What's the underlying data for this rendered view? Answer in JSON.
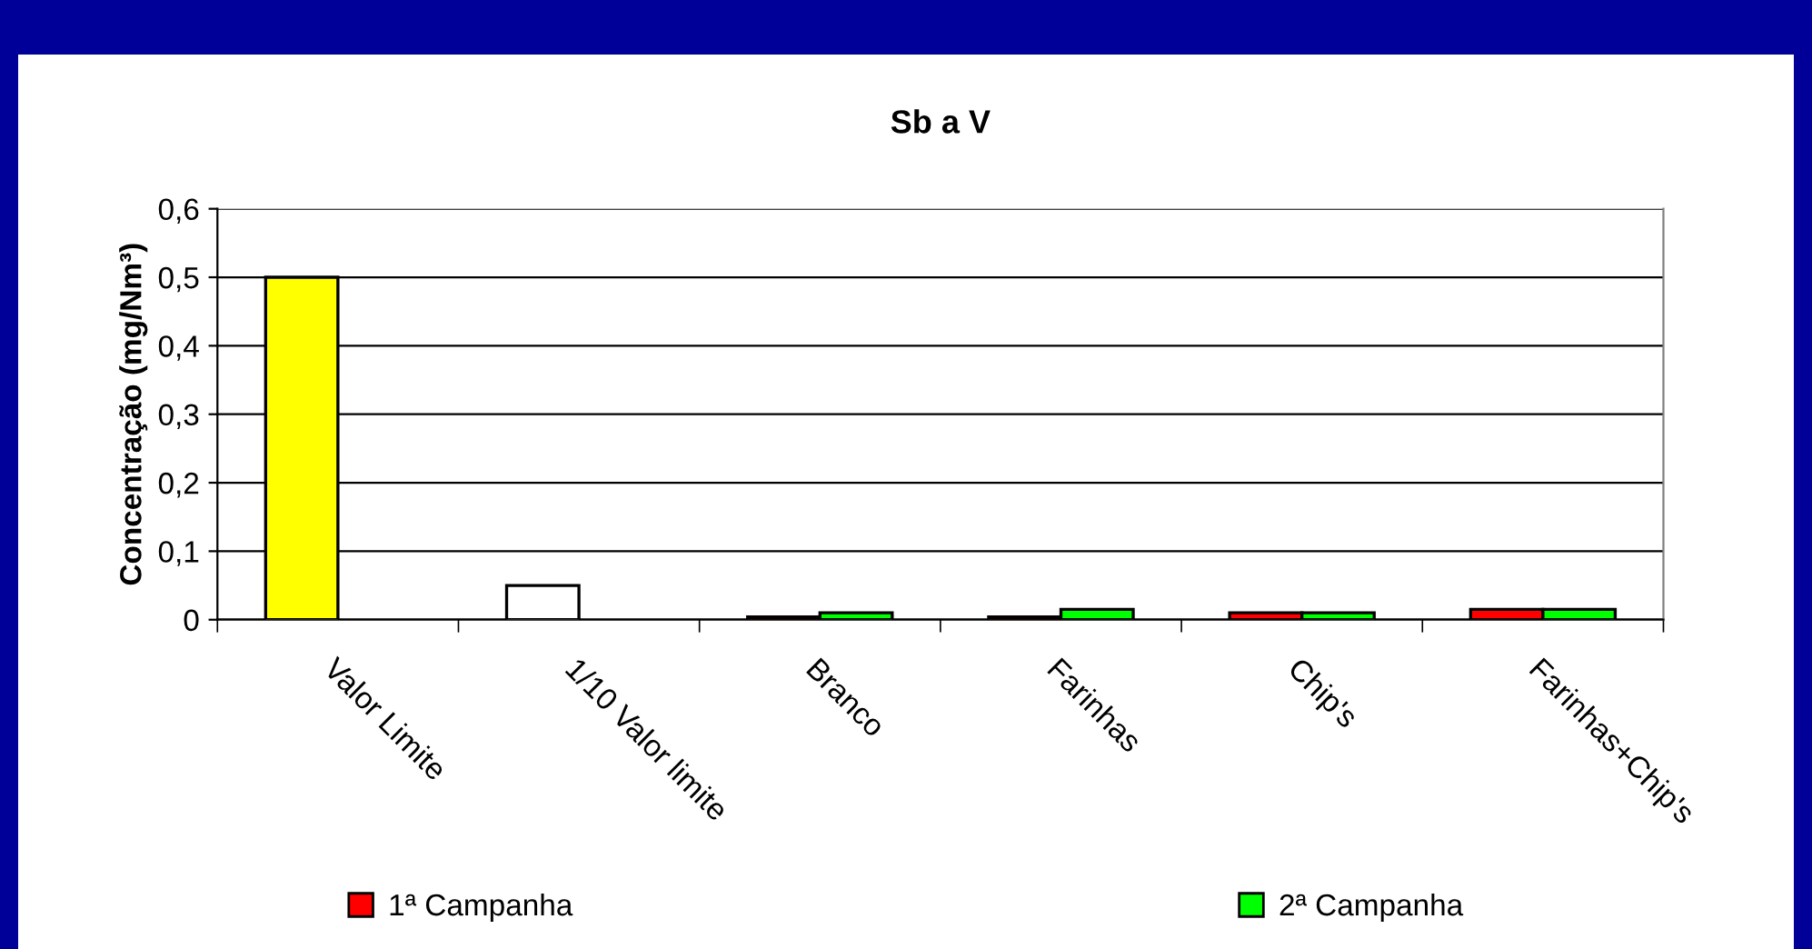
{
  "chart_data": {
    "type": "bar",
    "title": "Sb a V",
    "ylabel": "Concentração (mg/Nm³)",
    "categories": [
      "Valor Limite",
      "1/10 Valor limite",
      "Branco",
      "Farinhas",
      "Chip's",
      "Farinhas+Chip's"
    ],
    "series": [
      {
        "name": "1ª Campanha",
        "color": "#ff0000",
        "colors": [
          "#ffff00",
          "#ffffff",
          "#ff0000",
          "#ff0000",
          "#ff0000",
          "#ff0000"
        ],
        "values": [
          0.5,
          0.05,
          0.004,
          0.004,
          0.01,
          0.015
        ]
      },
      {
        "name": "2ª Campanha",
        "color": "#00ff00",
        "values": [
          null,
          null,
          0.01,
          0.015,
          0.01,
          0.015
        ]
      }
    ],
    "ylim": [
      0,
      0.6
    ],
    "yticks": [
      0,
      {
        "value": 0.1,
        "label": "0,1"
      },
      {
        "value": 0.2,
        "label": "0,2"
      },
      {
        "value": 0.3,
        "label": "0,3"
      },
      {
        "value": 0.4,
        "label": "0,4"
      },
      {
        "value": 0.5,
        "label": "0,5"
      },
      {
        "value": 0.6,
        "label": "0,6"
      }
    ],
    "grid": "y",
    "legend": "bottom"
  }
}
